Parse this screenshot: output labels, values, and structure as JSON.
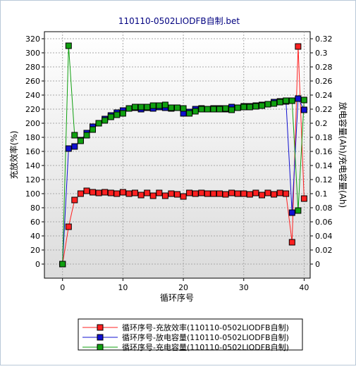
{
  "chart_data": {
    "type": "line",
    "title": "110110-0502LIODFB自制.bet",
    "xlabel": "循环序号",
    "ylabel_left": "充放效率(%)",
    "ylabel_right": "放电容量(Ah)/充电容量(Ah)",
    "xlim": [
      -3,
      41
    ],
    "ylim_left": [
      -20,
      330
    ],
    "ylim_right": [
      -0.02,
      0.33
    ],
    "x_ticks": [
      0,
      10,
      20,
      30,
      40
    ],
    "y_left_ticks": [
      0,
      20,
      40,
      60,
      80,
      100,
      120,
      140,
      160,
      180,
      200,
      220,
      240,
      260,
      280,
      300,
      320
    ],
    "y_right_ticks": [
      "0",
      "0.02",
      "0.04",
      "0.06",
      "0.08",
      "0.1",
      "0.12",
      "0.14",
      "0.16",
      "0.18",
      "0.2",
      "0.22",
      "0.24",
      "0.26",
      "0.28",
      "0.3",
      "0.32"
    ],
    "grid": true,
    "legend_position": "bottom",
    "series": [
      {
        "name": "循环序号-充放效率(110110-0502LIODFB自制)",
        "color": "#ff2020",
        "axis": "left",
        "x": [
          0,
          1,
          2,
          3,
          4,
          5,
          6,
          7,
          8,
          9,
          10,
          11,
          12,
          13,
          14,
          15,
          16,
          17,
          18,
          19,
          20,
          21,
          22,
          23,
          24,
          25,
          26,
          27,
          28,
          29,
          30,
          31,
          32,
          33,
          34,
          35,
          36,
          37,
          38,
          39,
          40
        ],
        "values": [
          0,
          53,
          91,
          100,
          104,
          102,
          101,
          102,
          101,
          100,
          102,
          100,
          101,
          98,
          101,
          97,
          101,
          97,
          100,
          99,
          96,
          101,
          100,
          101,
          100,
          100,
          100,
          99,
          101,
          100,
          100,
          99,
          101,
          98,
          101,
          99,
          101,
          100,
          31,
          309,
          93
        ]
      },
      {
        "name": "循环序号-放电容量(110110-0502LIODFB自制)",
        "color": "#1010d0",
        "axis": "right",
        "x": [
          0,
          1,
          2,
          3,
          4,
          5,
          6,
          7,
          8,
          9,
          10,
          11,
          12,
          13,
          14,
          15,
          16,
          17,
          18,
          19,
          20,
          21,
          22,
          23,
          24,
          25,
          26,
          27,
          28,
          29,
          30,
          31,
          32,
          33,
          34,
          35,
          36,
          37,
          38,
          39,
          40
        ],
        "values": [
          0,
          0.164,
          0.167,
          0.176,
          0.186,
          0.195,
          0.2,
          0.206,
          0.211,
          0.215,
          0.218,
          0.221,
          0.222,
          0.22,
          0.222,
          0.221,
          0.223,
          0.222,
          0.221,
          0.222,
          0.214,
          0.216,
          0.22,
          0.221,
          0.22,
          0.221,
          0.221,
          0.22,
          0.223,
          0.222,
          0.224,
          0.224,
          0.225,
          0.226,
          0.227,
          0.23,
          0.231,
          0.231,
          0.073,
          0.235,
          0.219
        ]
      },
      {
        "name": "循环序号-充电容量(110110-0502LIODFB自制)",
        "color": "#10a010",
        "axis": "right",
        "x": [
          0,
          1,
          2,
          3,
          4,
          5,
          6,
          7,
          8,
          9,
          10,
          11,
          12,
          13,
          14,
          15,
          16,
          17,
          18,
          19,
          20,
          21,
          22,
          23,
          24,
          25,
          26,
          27,
          28,
          29,
          30,
          31,
          32,
          33,
          34,
          35,
          36,
          37,
          38,
          39,
          40
        ],
        "values": [
          0,
          0.31,
          0.183,
          0.175,
          0.183,
          0.191,
          0.2,
          0.204,
          0.209,
          0.212,
          0.214,
          0.221,
          0.223,
          0.223,
          0.223,
          0.225,
          0.225,
          0.226,
          0.222,
          0.222,
          0.221,
          0.214,
          0.217,
          0.22,
          0.22,
          0.22,
          0.22,
          0.221,
          0.219,
          0.222,
          0.223,
          0.223,
          0.224,
          0.225,
          0.227,
          0.228,
          0.23,
          0.232,
          0.232,
          0.076,
          0.233
        ]
      }
    ]
  }
}
